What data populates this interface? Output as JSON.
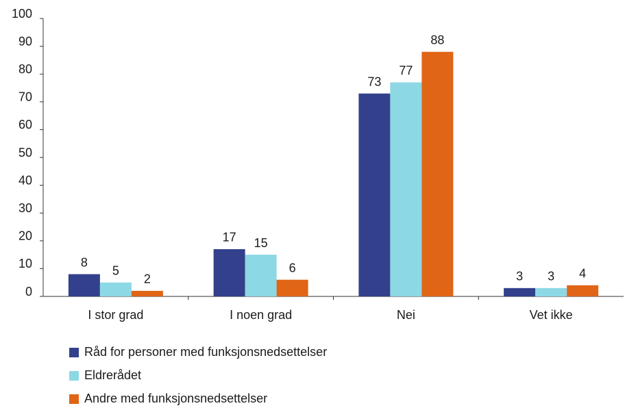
{
  "chart_data": {
    "type": "bar",
    "categories": [
      "I stor grad",
      "I noen grad",
      "Nei",
      "Vet ikke"
    ],
    "series": [
      {
        "name": "Råd for personer med funksjonsnedsettelser",
        "color": "#33408b",
        "values": [
          8,
          17,
          73,
          3
        ]
      },
      {
        "name": "Eldrerådet",
        "color": "#8cd8e4",
        "values": [
          5,
          15,
          77,
          3
        ]
      },
      {
        "name": "Andre med funksjonsnedsettelser",
        "color": "#e06516",
        "values": [
          2,
          6,
          88,
          4
        ]
      }
    ],
    "ylim": [
      0,
      100
    ],
    "yticks": [
      0,
      10,
      20,
      30,
      40,
      50,
      60,
      70,
      80,
      90,
      100
    ],
    "grid": false,
    "legend": "bottom"
  }
}
